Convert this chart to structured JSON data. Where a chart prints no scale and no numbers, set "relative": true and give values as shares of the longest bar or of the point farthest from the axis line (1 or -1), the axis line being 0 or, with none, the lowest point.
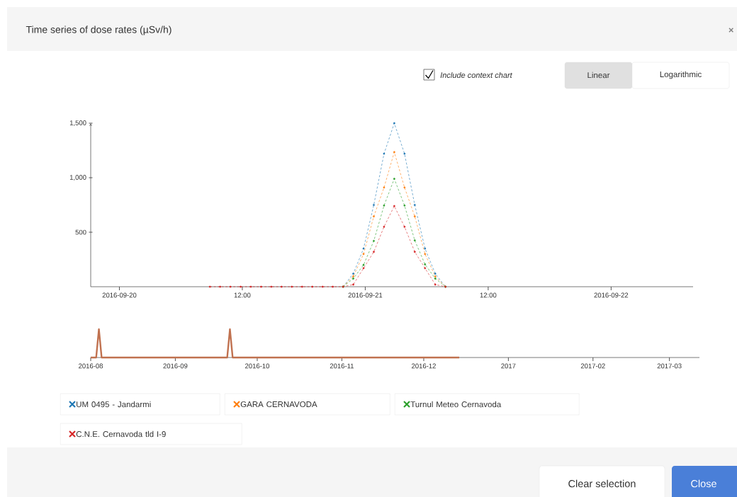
{
  "chart_data": [
    {
      "type": "line",
      "title": "Time series of dose rates (µSv/h)",
      "annotations": [
        "Include context chart",
        "Linear",
        "Logarithmic",
        "Clear selection",
        "Close",
        "×"
      ],
      "legend": "bottom",
      "marker": "circle",
      "line_style": "dashed",
      "xlim": [
        "2016-09-19T21:12",
        "2016-09-22T08:00"
      ],
      "ylim": [
        0,
        1500
      ],
      "xticks": [
        {
          "value": "2016-09-20T00:00",
          "label": "2016-09-20"
        },
        {
          "value": "2016-09-20T12:00",
          "label": "12:00"
        },
        {
          "value": "2016-09-21T00:00",
          "label": "2016-09-21"
        },
        {
          "value": "2016-09-21T12:00",
          "label": "12:00"
        },
        {
          "value": "2016-09-22T00:00",
          "label": "2016-09-22"
        }
      ],
      "yticks": [
        500,
        {
          "value": 1000,
          "label": "1,000"
        },
        {
          "value": 1500,
          "label": "1,500"
        }
      ],
      "series": [
        {
          "name": "UM 0495 - Jandarmi",
          "color": "#1f77b4",
          "x": [
            "2016-09-20T21:50",
            "2016-09-20T22:50",
            "2016-09-20T23:50",
            "2016-09-21T00:50",
            "2016-09-21T01:50",
            "2016-09-21T02:50",
            "2016-09-21T03:50",
            "2016-09-21T04:50",
            "2016-09-21T05:50",
            "2016-09-21T06:50",
            "2016-09-21T07:50"
          ],
          "values": [
            0,
            120,
            350,
            750,
            1220,
            1500,
            1220,
            750,
            350,
            120,
            0
          ]
        },
        {
          "name": "GARA CERNAVODA",
          "color": "#ff7f0e",
          "x": [
            "2016-09-20T21:50",
            "2016-09-20T22:50",
            "2016-09-20T23:50",
            "2016-09-21T00:50",
            "2016-09-21T01:50",
            "2016-09-21T02:50",
            "2016-09-21T03:50",
            "2016-09-21T04:50",
            "2016-09-21T05:50",
            "2016-09-21T06:50",
            "2016-09-21T07:50"
          ],
          "values": [
            0,
            95,
            300,
            645,
            910,
            1235,
            910,
            645,
            300,
            95,
            0
          ]
        },
        {
          "name": "Turnul Meteo Cernavoda",
          "color": "#2ca02c",
          "x": [
            "2016-09-20T21:50",
            "2016-09-20T22:50",
            "2016-09-20T23:50",
            "2016-09-21T00:50",
            "2016-09-21T01:50",
            "2016-09-21T02:50",
            "2016-09-21T03:50",
            "2016-09-21T04:50",
            "2016-09-21T05:50",
            "2016-09-21T06:50",
            "2016-09-21T07:50"
          ],
          "values": [
            0,
            75,
            200,
            420,
            745,
            990,
            745,
            425,
            205,
            75,
            0
          ]
        },
        {
          "name": "C.N.E. Cernavoda tld I-9",
          "color": "#d62728",
          "x": [
            "2016-09-20T08:50",
            "2016-09-20T09:50",
            "2016-09-20T10:50",
            "2016-09-20T11:50",
            "2016-09-20T12:50",
            "2016-09-20T13:50",
            "2016-09-20T14:50",
            "2016-09-20T15:50",
            "2016-09-20T16:50",
            "2016-09-20T17:50",
            "2016-09-20T18:50",
            "2016-09-20T19:50",
            "2016-09-20T20:50",
            "2016-09-20T21:50",
            "2016-09-20T22:50",
            "2016-09-20T23:50",
            "2016-09-21T00:50",
            "2016-09-21T01:50",
            "2016-09-21T02:50",
            "2016-09-21T03:50",
            "2016-09-21T04:50",
            "2016-09-21T05:50",
            "2016-09-21T06:50",
            "2016-09-21T07:50"
          ],
          "values": [
            0,
            0,
            0,
            0,
            0,
            0,
            0,
            0,
            0,
            0,
            0,
            0,
            0,
            0,
            20,
            170,
            320,
            550,
            740,
            550,
            320,
            170,
            20,
            0
          ]
        }
      ]
    },
    {
      "type": "line",
      "relative": true,
      "tick_labels": "x",
      "color": "#c0714f",
      "x": [
        "2016-08-01",
        "2016-08-03",
        "2016-08-04",
        "2016-08-05",
        "2016-09-20",
        "2016-09-21",
        "2016-09-22",
        "2016-12-14"
      ],
      "values": [
        0,
        0,
        1,
        0,
        0,
        1,
        0,
        0
      ],
      "xlim": [
        "2016-08-01",
        "2017-03-12"
      ],
      "xticks": [
        {
          "value": "2016-08-01",
          "label": "2016-08"
        },
        {
          "value": "2016-09-01",
          "label": "2016-09"
        },
        {
          "value": "2016-10-01",
          "label": "2016-10"
        },
        {
          "value": "2016-11-01",
          "label": "2016-11"
        },
        {
          "value": "2016-12-01",
          "label": "2016-12"
        },
        {
          "value": "2017-01-01",
          "label": "2017"
        },
        {
          "value": "2017-02-01",
          "label": "2017-02"
        },
        {
          "value": "2017-03-01",
          "label": "2017-03"
        }
      ]
    }
  ]
}
